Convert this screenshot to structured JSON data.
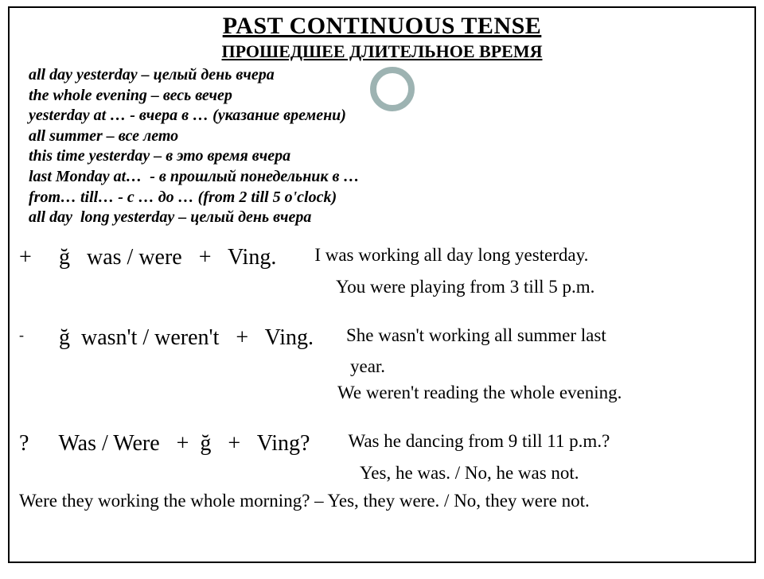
{
  "title": "PAST CONTINUOUS TENSE",
  "subtitle": "ПРОШЕДШЕЕ ДЛИТЕЛЬНОЕ ВРЕМЯ",
  "markers": [
    "all day yesterday – целый день вчера",
    "the whole evening – весь вечер",
    "yesterday at … - вчера в … (указание времени)",
    "all summer – все лето",
    "this time yesterday – в это время вчера",
    "last Monday at…  - в прошлый понедельник в …",
    "from… till… - с … до … (from 2 till 5 o'clock)",
    "all day  long yesterday – целый день вчера"
  ],
  "positive": {
    "sign": "+",
    "formula": "  ğ   was / were   +   Ving.    ",
    "ex1": "I was working all day long yesterday.",
    "ex2": "You were playing from 3 till 5 p.m."
  },
  "negative": {
    "sign": "-",
    "formula": "  ğ  wasn't / weren't   +   Ving.   ",
    "ex1": "She wasn't working all summer last",
    "ex2a": "year.",
    "ex2b": "We weren't reading the whole evening."
  },
  "question": {
    "sign": "?",
    "formula": "  Was / Were   +  ğ   +   Ving?    ",
    "ex1": "Was he dancing from 9 till 11 p.m.?",
    "ex2": "Yes, he was. / No, he was not."
  },
  "last_line": "Were they working the whole morning? – Yes, they were. / No, they were not.",
  "colors": {
    "text": "#000000",
    "background": "#ffffff",
    "ring": "#9db3b2",
    "border": "#000000"
  }
}
